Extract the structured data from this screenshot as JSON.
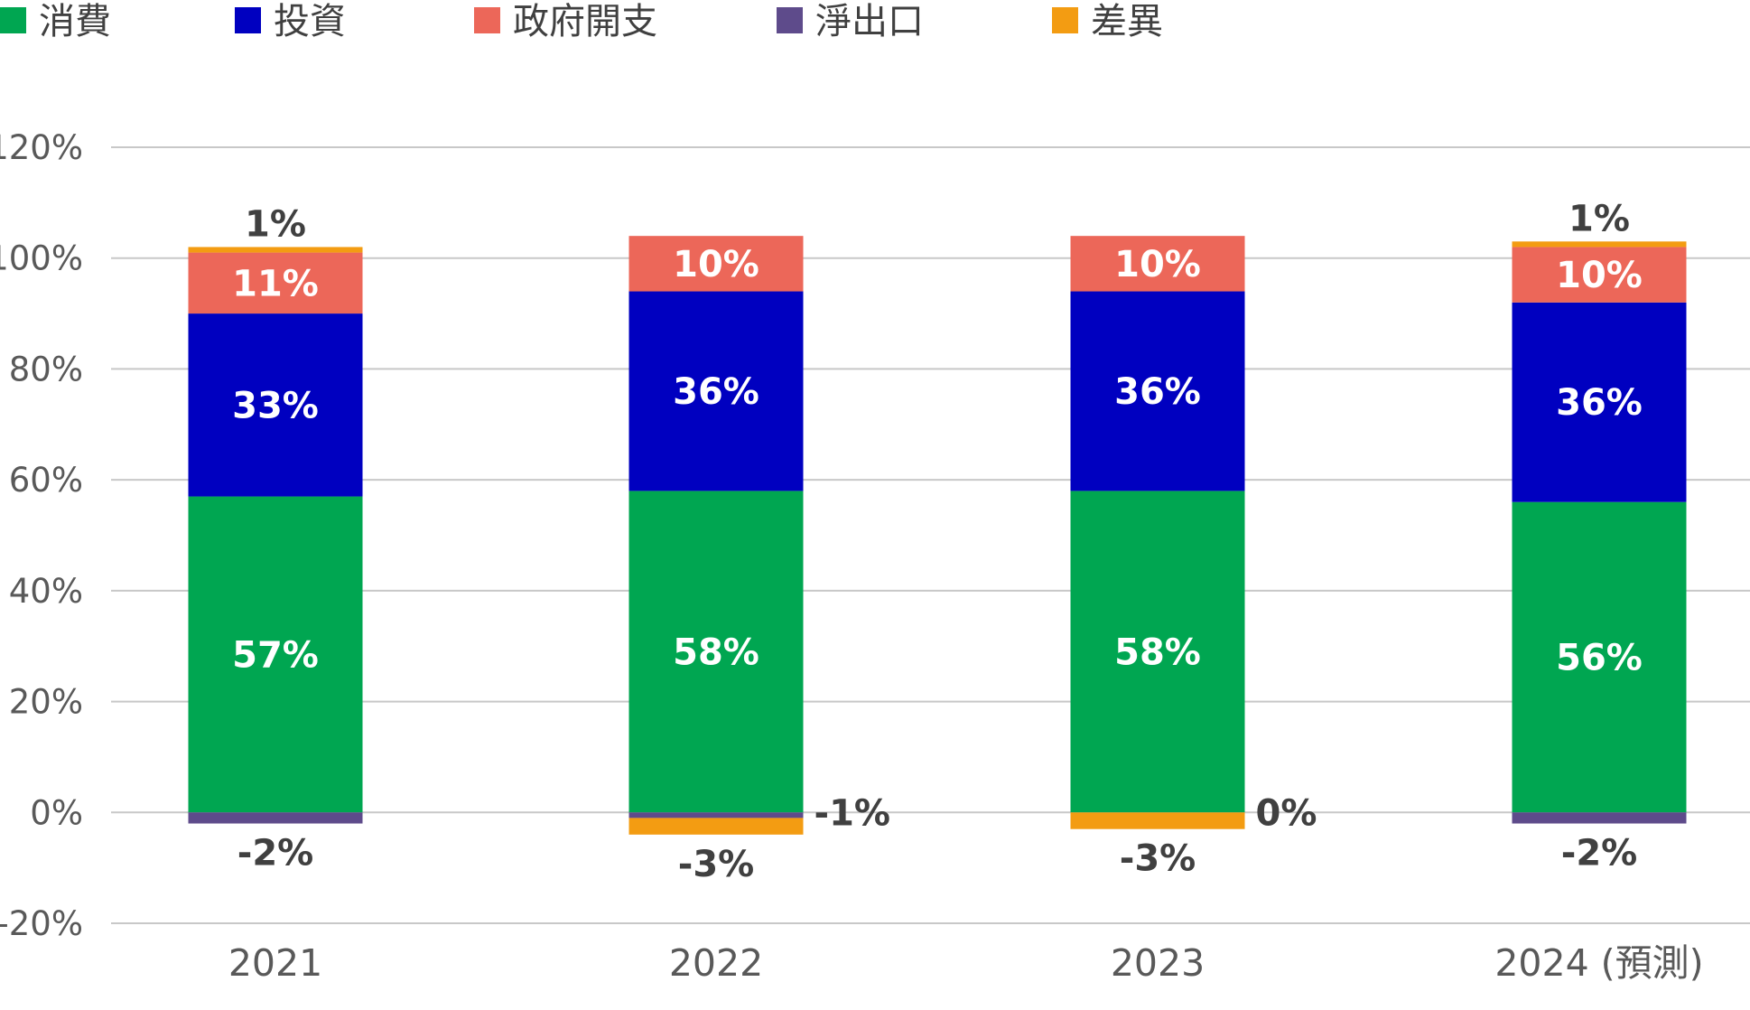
{
  "chart_data": {
    "type": "bar",
    "stacked": true,
    "categories": [
      "2021",
      "2022",
      "2023",
      "2024 (預測)"
    ],
    "ylim": [
      -20,
      120
    ],
    "yticks": [
      -20,
      0,
      20,
      40,
      60,
      80,
      100,
      120
    ],
    "ytick_labels": [
      "-20%",
      "0%",
      "20%",
      "40%",
      "60%",
      "80%",
      "100%",
      "120%"
    ],
    "grid": true,
    "legend_position": "top",
    "series": [
      {
        "name": "消費",
        "color": "#00A651",
        "values": [
          57,
          58,
          58,
          56
        ],
        "labels": [
          "57%",
          "58%",
          "58%",
          "56%"
        ]
      },
      {
        "name": "投資",
        "color": "#0000C0",
        "values": [
          33,
          36,
          36,
          36
        ],
        "labels": [
          "33%",
          "36%",
          "36%",
          "36%"
        ]
      },
      {
        "name": "政府開支",
        "color": "#EC6759",
        "values": [
          11,
          10,
          10,
          10
        ],
        "labels": [
          "11%",
          "10%",
          "10%",
          "10%"
        ]
      },
      {
        "name": "淨出口",
        "color": "#5E4B8B",
        "values": [
          -2,
          -1,
          0,
          -2
        ],
        "labels": [
          "-2%",
          "-1%",
          "0%",
          "-2%"
        ]
      },
      {
        "name": "差異",
        "color": "#F39C12",
        "values": [
          1,
          -3,
          -3,
          1
        ],
        "labels": [
          "1%",
          "-3%",
          "-3%",
          "1%"
        ]
      }
    ]
  }
}
